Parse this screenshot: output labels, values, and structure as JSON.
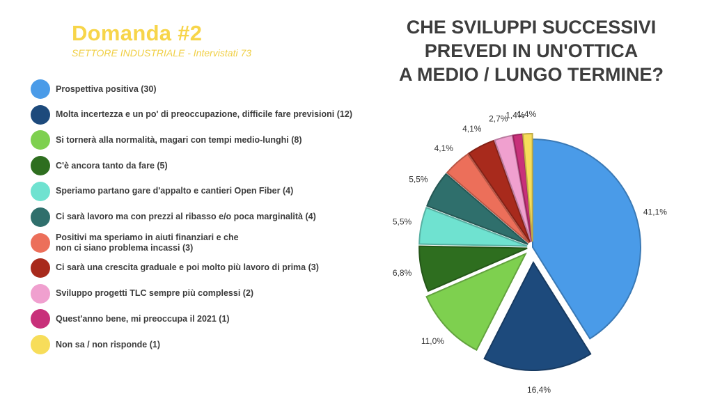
{
  "header": {
    "title": "Domanda #2",
    "subtitle": "SETTORE INDUSTRIALE - Intervistati 73"
  },
  "question": "CHE SVILUPPI SUCCESSIVI\nPREVEDI IN UN'OTTICA\nA MEDIO / LUNGO TERMINE?",
  "chart_data": {
    "type": "pie",
    "slices": [
      {
        "label": "Prospettiva positiva (30)",
        "count": 30,
        "percent": 41.1,
        "percent_label": "41,1%",
        "color": "#4a9be8"
      },
      {
        "label": "Molta incertezza e un po' di preoccupazione, difficile fare previsioni (12)",
        "count": 12,
        "percent": 16.4,
        "percent_label": "16,4%",
        "color": "#1d4a7c"
      },
      {
        "label": "Si tornerà alla normalità, magari con tempi medio-lunghi (8)",
        "count": 8,
        "percent": 11.0,
        "percent_label": "11,0%",
        "color": "#7ed04f"
      },
      {
        "label": "C'è ancora tanto da fare (5)",
        "count": 5,
        "percent": 6.8,
        "percent_label": "6,8%",
        "color": "#2e6e1f"
      },
      {
        "label": "Speriamo partano gare d'appalto e cantieri Open Fiber (4)",
        "count": 4,
        "percent": 5.5,
        "percent_label": "5,5%",
        "color": "#6fe2d0"
      },
      {
        "label": "Ci sarà lavoro ma con prezzi al ribasso e/o poca marginalità (4)",
        "count": 4,
        "percent": 5.5,
        "percent_label": "5,5%",
        "color": "#2f6f6c"
      },
      {
        "label": "Positivi ma speriamo in aiuti finanziari e che\nnon ci siano problema incassi (3)",
        "count": 3,
        "percent": 4.1,
        "percent_label": "4,1%",
        "color": "#ec6f5a"
      },
      {
        "label": "Ci sarà una crescita graduale e poi molto più lavoro di prima (3)",
        "count": 3,
        "percent": 4.1,
        "percent_label": "4,1%",
        "color": "#a82a1c"
      },
      {
        "label": "Sviluppo progetti TLC sempre più complessi (2)",
        "count": 2,
        "percent": 2.7,
        "percent_label": "2,7%",
        "color": "#f0a0cf"
      },
      {
        "label": "Quest'anno bene, mi preoccupa il 2021 (1)",
        "count": 1,
        "percent": 1.4,
        "percent_label": "1,4%",
        "color": "#c8307a"
      },
      {
        "label": "Non sa / non risponde (1)",
        "count": 1,
        "percent": 1.4,
        "percent_label": "1,4%",
        "color": "#f7dd5a"
      }
    ]
  }
}
